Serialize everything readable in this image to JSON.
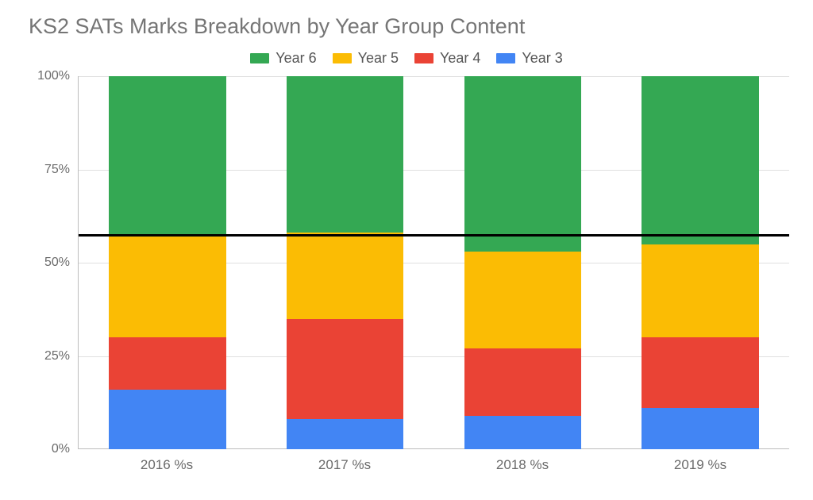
{
  "title": "KS2 SATs Marks Breakdown by Year Group Content",
  "legend": [
    {
      "label": "Year 6",
      "color": "#34a853"
    },
    {
      "label": "Year 5",
      "color": "#fbbc04"
    },
    {
      "label": "Year 4",
      "color": "#ea4335"
    },
    {
      "label": "Year 3",
      "color": "#4285f4"
    }
  ],
  "chart": {
    "type": "stacked-bar-100",
    "background_color": "#ffffff",
    "grid_color": "#e0e0e0",
    "axis_color": "#bdbdbd",
    "text_color": "#6b6b6b",
    "title_color": "#757575",
    "title_fontsize": 27,
    "label_fontsize": 17,
    "legend_fontsize": 18,
    "ylim": [
      0,
      100
    ],
    "ytick_step": 25,
    "yticks": [
      0,
      25,
      50,
      75,
      100
    ],
    "ytick_labels": [
      "0%",
      "25%",
      "50%",
      "75%",
      "100%"
    ],
    "bar_width": 0.66,
    "categories": [
      "2016 %s",
      "2017 %s",
      "2018 %s",
      "2019 %s"
    ],
    "series": [
      {
        "name": "Year 3",
        "color": "#4285f4",
        "values": [
          16,
          8,
          9,
          11
        ]
      },
      {
        "name": "Year 4",
        "color": "#ea4335",
        "values": [
          14,
          27,
          18,
          19
        ]
      },
      {
        "name": "Year 5",
        "color": "#fbbc04",
        "values": [
          27,
          23,
          26,
          25
        ]
      },
      {
        "name": "Year 6",
        "color": "#34a853",
        "values": [
          43,
          42,
          47,
          45
        ]
      }
    ],
    "reference_line": {
      "value": 57,
      "color": "#000000",
      "width": 3
    }
  }
}
